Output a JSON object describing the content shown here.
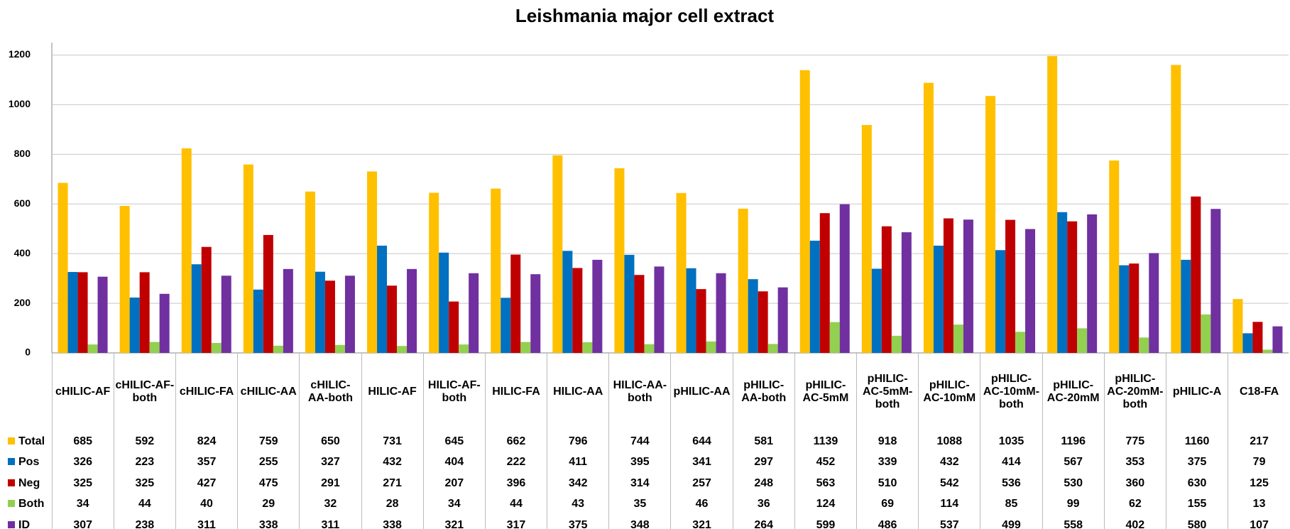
{
  "chart_data": {
    "type": "bar",
    "title": "Leishmania major cell extract",
    "categories": [
      "cHILIC-AF",
      "cHILIC-AF-both",
      "cHILIC-FA",
      "cHILIC-AA",
      "cHILIC-AA-both",
      "HILIC-AF",
      "HILIC-AF-both",
      "HILIC-FA",
      "HILIC-AA",
      "HILIC-AA-both",
      "pHILIC-AA",
      "pHILIC-AA-both",
      "pHILIC-AC-5mM",
      "pHILIC-AC-5mM-both",
      "pHILIC-AC-10mM",
      "pHILIC-AC-10mM-both",
      "pHILIC-AC-20mM",
      "pHILIC-AC-20mM-both",
      "pHILIC-A",
      "C18-FA"
    ],
    "series": [
      {
        "name": "Total",
        "color": "#ffc000",
        "values": [
          685,
          592,
          824,
          759,
          650,
          731,
          645,
          662,
          796,
          744,
          644,
          581,
          1139,
          918,
          1088,
          1035,
          1196,
          775,
          1160,
          217
        ]
      },
      {
        "name": "Pos",
        "color": "#0070c0",
        "values": [
          326,
          223,
          357,
          255,
          327,
          432,
          404,
          222,
          411,
          395,
          341,
          297,
          452,
          339,
          432,
          414,
          567,
          353,
          375,
          79
        ]
      },
      {
        "name": "Neg",
        "color": "#c00000",
        "values": [
          325,
          325,
          427,
          475,
          291,
          271,
          207,
          396,
          342,
          314,
          257,
          248,
          563,
          510,
          542,
          536,
          530,
          360,
          630,
          125
        ]
      },
      {
        "name": "Both",
        "color": "#92d050",
        "values": [
          34,
          44,
          40,
          29,
          32,
          28,
          34,
          44,
          43,
          35,
          46,
          36,
          124,
          69,
          114,
          85,
          99,
          62,
          155,
          13
        ]
      },
      {
        "name": "ID",
        "color": "#7030a0",
        "values": [
          307,
          238,
          311,
          338,
          311,
          338,
          321,
          317,
          375,
          348,
          321,
          264,
          599,
          486,
          537,
          499,
          558,
          402,
          580,
          107
        ]
      }
    ],
    "ylim": [
      0,
      1250
    ],
    "yticks": [
      0,
      200,
      400,
      600,
      800,
      1000,
      1200
    ],
    "grid": true
  }
}
